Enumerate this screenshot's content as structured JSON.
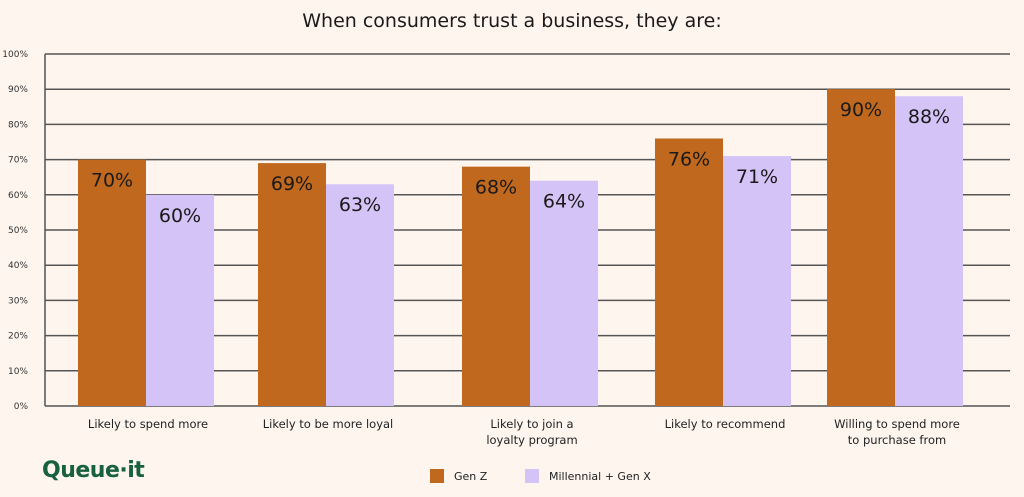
{
  "chart_data": {
    "type": "bar",
    "title": "When consumers trust a business, they are:",
    "categories": [
      [
        "Likely to spend more"
      ],
      [
        "Likely to be more loyal"
      ],
      [
        "Likely to join a",
        "loyalty program"
      ],
      [
        "Likely to recommend"
      ],
      [
        "Willing to spend more",
        "to purchase from"
      ]
    ],
    "series": [
      {
        "name": "Gen Z",
        "color": "#c0681e",
        "values": [
          70,
          69,
          68,
          76,
          90
        ],
        "labels": [
          "70%",
          "69%",
          "68%",
          "76%",
          "90%"
        ]
      },
      {
        "name": "Millennial + Gen X",
        "color": "#d4c3f6",
        "values": [
          60,
          63,
          64,
          71,
          88
        ],
        "labels": [
          "60%",
          "63%",
          "64%",
          "71%",
          "88%"
        ]
      }
    ],
    "ylim": [
      0,
      100
    ],
    "yticks": [
      "0%",
      "10%",
      "20%",
      "30%",
      "40%",
      "50%",
      "60%",
      "70%",
      "80%",
      "90%",
      "100%"
    ],
    "grid": true,
    "legend": "bottom"
  },
  "logo": "Queue·it"
}
